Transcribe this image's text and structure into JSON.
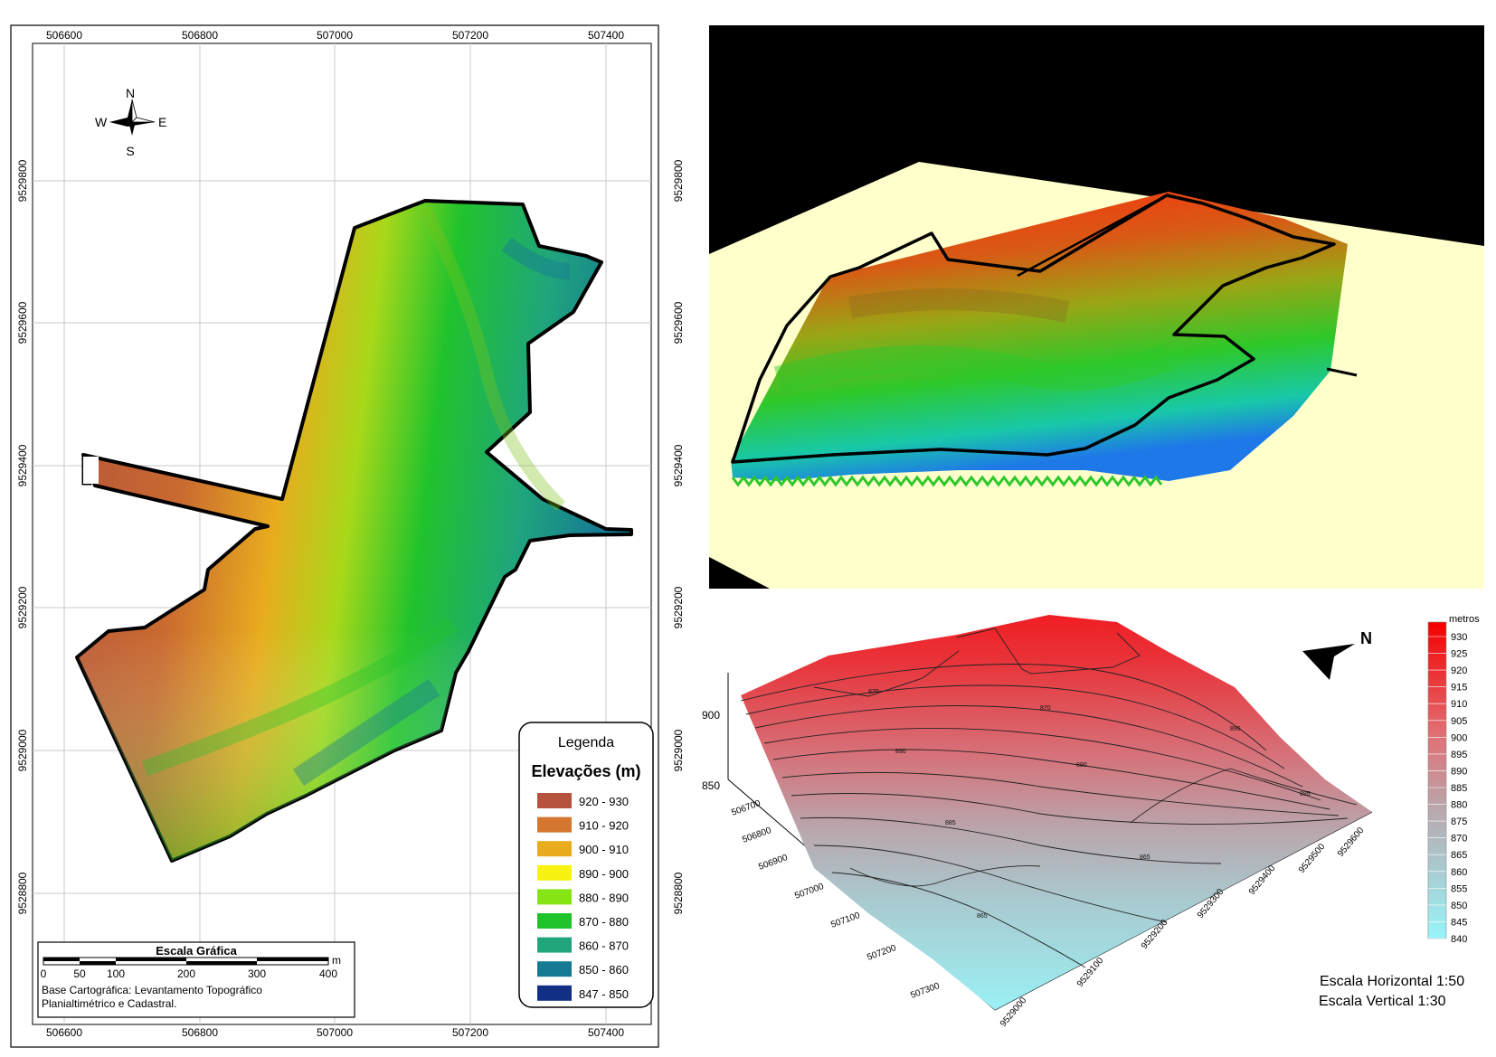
{
  "map": {
    "x_ticks": [
      "506600",
      "506800",
      "507000",
      "507200",
      "507400"
    ],
    "y_ticks": [
      "9529800",
      "9529600",
      "9529400",
      "9529200",
      "9529000",
      "9528800"
    ],
    "compass": {
      "n": "N",
      "s": "S",
      "e": "E",
      "w": "W"
    },
    "legend": {
      "title": "Legenda",
      "subtitle": "Elevações (m)",
      "classes": [
        {
          "label": "920 - 930",
          "color": "#b5533c"
        },
        {
          "label": "910 - 920",
          "color": "#d4762f"
        },
        {
          "label": "900 - 910",
          "color": "#e8ac1e"
        },
        {
          "label": "890 - 900",
          "color": "#f7f20f"
        },
        {
          "label": "880 - 890",
          "color": "#86e314"
        },
        {
          "label": "870 - 880",
          "color": "#21c32c"
        },
        {
          "label": "860 - 870",
          "color": "#20a57c"
        },
        {
          "label": "850 - 860",
          "color": "#167a94"
        },
        {
          "label": "847 - 850",
          "color": "#112f84"
        }
      ]
    },
    "scale_bar": {
      "title": "Escala Gráfica",
      "unit": "m",
      "ticks": [
        "0",
        "50",
        "100",
        "200",
        "300",
        "400"
      ],
      "source_line1": "Base Cartográfica: Levantamento Topográfico",
      "source_line2": "Planialtimétrico e Cadastral."
    }
  },
  "surface": {
    "north": "N",
    "z_ticks": [
      "900",
      "850"
    ],
    "x_ticks": [
      "506700",
      "506800",
      "506900",
      "507000",
      "507100",
      "507200",
      "507300"
    ],
    "y_ticks": [
      "9529000",
      "9529100",
      "9529200",
      "9529300",
      "9529400",
      "9529500",
      "9529600"
    ],
    "contour_labels": [
      "870",
      "870",
      "890",
      "890",
      "885",
      "865",
      "865",
      "895",
      "895"
    ],
    "colorbar": {
      "unit": "metros",
      "levels": [
        "930",
        "925",
        "920",
        "915",
        "910",
        "905",
        "900",
        "895",
        "890",
        "885",
        "880",
        "875",
        "870",
        "865",
        "860",
        "855",
        "850",
        "845",
        "840"
      ]
    },
    "scale_h": "Escala Horizontal 1:50",
    "scale_v": "Escala Vertical 1:30"
  }
}
